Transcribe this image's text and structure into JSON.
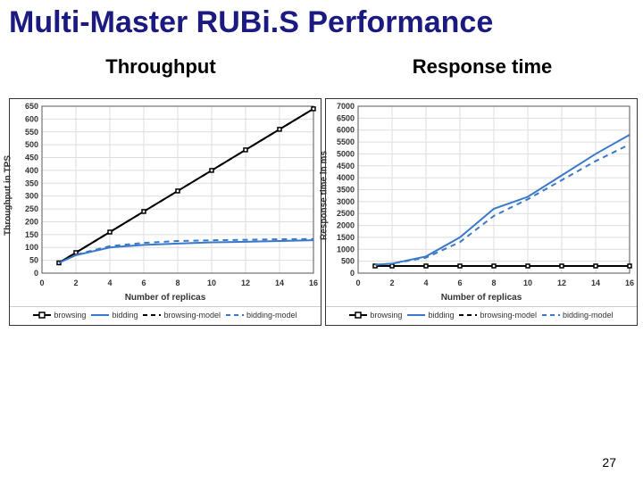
{
  "title": "Multi-Master RUBi.S Performance",
  "page_number": "27",
  "colors": {
    "title": "#1a1a80",
    "text": "#000000",
    "axis": "#555555",
    "grid": "#dddddd",
    "browsing": "#000000",
    "bidding": "#3a79c9",
    "browsing_model": "#000000",
    "bidding_model": "#3a79c9",
    "background": "#ffffff"
  },
  "typography": {
    "title_fontsize": 34,
    "subtitle_fontsize": 22,
    "axis_label_fontsize": 10,
    "tick_fontsize": 9,
    "legend_fontsize": 9
  },
  "legend_items": [
    {
      "key": "browsing",
      "label": "browsing",
      "style": "solid-marker",
      "color_key": "browsing"
    },
    {
      "key": "bidding",
      "label": "bidding",
      "style": "solid",
      "color_key": "bidding"
    },
    {
      "key": "browsing_model",
      "label": "browsing-model",
      "style": "dash",
      "color_key": "browsing_model"
    },
    {
      "key": "bidding_model",
      "label": "bidding-model",
      "style": "dash",
      "color_key": "bidding_model"
    }
  ],
  "charts": {
    "throughput": {
      "subtitle": "Throughput",
      "type": "line",
      "xlabel": "Number of replicas",
      "ylabel": "Throughput in TPS",
      "xlim": [
        0,
        16
      ],
      "ylim": [
        0,
        650
      ],
      "xtick_step": 2,
      "ytick_step": 50,
      "x": [
        1,
        2,
        4,
        6,
        8,
        10,
        12,
        14,
        16
      ],
      "series": {
        "browsing": [
          40,
          80,
          160,
          240,
          320,
          400,
          480,
          560,
          640
        ],
        "browsing_model": [
          40,
          80,
          160,
          240,
          320,
          400,
          480,
          560,
          640
        ],
        "bidding": [
          40,
          70,
          100,
          110,
          115,
          120,
          122,
          125,
          128
        ],
        "bidding_model": [
          40,
          72,
          105,
          118,
          125,
          128,
          130,
          132,
          133
        ]
      },
      "line_width": 2,
      "marker_size": 4
    },
    "response": {
      "subtitle": "Response time",
      "type": "line",
      "xlabel": "Number of replicas",
      "ylabel": "Response time in ms",
      "xlim": [
        0,
        16
      ],
      "ylim": [
        0,
        7000
      ],
      "xtick_step": 2,
      "ytick_step": 500,
      "x": [
        1,
        2,
        4,
        6,
        8,
        10,
        12,
        14,
        16
      ],
      "series": {
        "browsing": [
          300,
          300,
          300,
          300,
          300,
          300,
          300,
          300,
          300
        ],
        "browsing_model": [
          300,
          300,
          300,
          300,
          300,
          300,
          300,
          300,
          300
        ],
        "bidding": [
          350,
          400,
          700,
          1500,
          2700,
          3200,
          4100,
          5000,
          5800
        ],
        "bidding_model": [
          350,
          400,
          650,
          1300,
          2400,
          3100,
          3900,
          4700,
          5400
        ]
      },
      "line_width": 2,
      "marker_size": 4
    }
  }
}
